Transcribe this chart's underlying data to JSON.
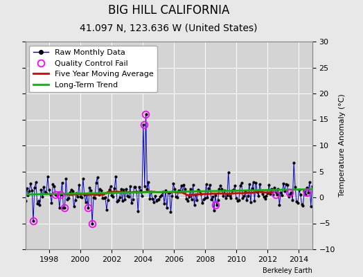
{
  "title": "BIG HILL CALIFORNIA",
  "subtitle": "41.097 N, 123.636 W (United States)",
  "ylabel": "Temperature Anomaly (°C)",
  "credit": "Berkeley Earth",
  "xlim": [
    1996.5,
    2014.85
  ],
  "ylim": [
    -10,
    30
  ],
  "yticks": [
    -10,
    -5,
    0,
    5,
    10,
    15,
    20,
    25,
    30
  ],
  "xticks": [
    1998,
    2000,
    2002,
    2004,
    2006,
    2008,
    2010,
    2012,
    2014
  ],
  "bg_color": "#e8e8e8",
  "plot_bg_color": "#d4d4d4",
  "grid_color": "#ffffff",
  "raw_color": "#0000cc",
  "ma_color": "#dd0000",
  "trend_color": "#00bb00",
  "qc_color": "#ff00ff",
  "title_fontsize": 12,
  "subtitle_fontsize": 10,
  "axis_fontsize": 8,
  "legend_fontsize": 8,
  "ylabel_fontsize": 8,
  "t_start": 1996.5,
  "t_end": 2014.85,
  "spike_time": 2004.17,
  "spike_val": 16.0,
  "spike2_time": 2004.08,
  "spike2_val": 14.0,
  "qc_times": [
    1997.0,
    1998.42,
    1998.75,
    1999.0,
    2000.5,
    2000.75,
    2004.17,
    2004.08,
    2008.67,
    2012.5,
    2013.42,
    2014.5
  ],
  "qc_vals": [
    -4.5,
    0.5,
    0.5,
    -2.0,
    -2.0,
    -5.0,
    16.0,
    14.0,
    -1.5,
    0.5,
    1.0,
    1.0
  ]
}
